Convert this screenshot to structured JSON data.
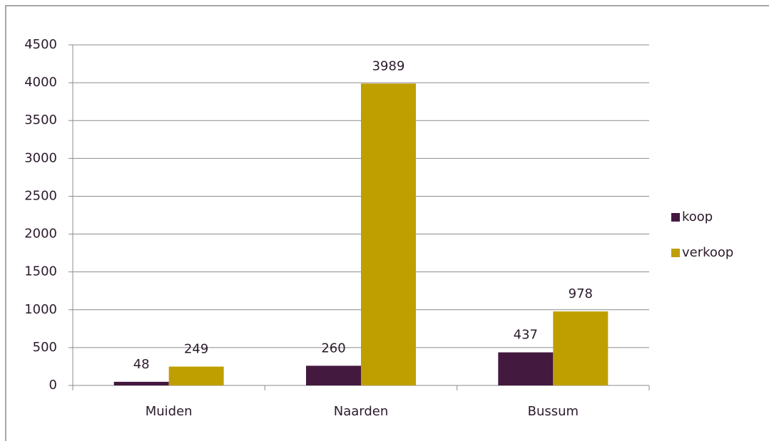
{
  "chart_data": {
    "type": "bar",
    "categories": [
      "Muiden",
      "Naarden",
      "Bussum"
    ],
    "series": [
      {
        "name": "koop",
        "color": "#44193f",
        "values": [
          48,
          260,
          437
        ]
      },
      {
        "name": "verkoop",
        "color": "#bf9f00",
        "values": [
          249,
          3989,
          978
        ]
      }
    ],
    "ylim": [
      0,
      4500
    ],
    "yticks": [
      0,
      500,
      1000,
      1500,
      2000,
      2500,
      3000,
      3500,
      4000,
      4500
    ],
    "grid": true,
    "legend": "right",
    "data_labels": true
  }
}
